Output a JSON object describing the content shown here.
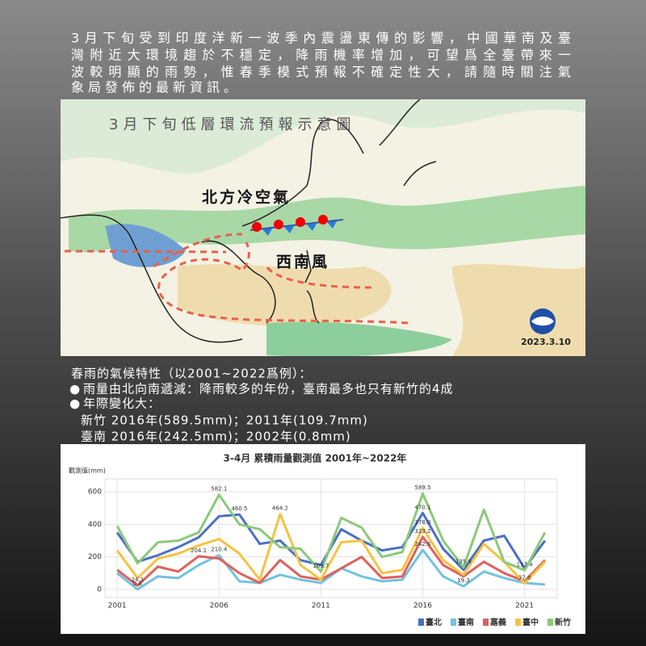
{
  "intro_lines": [
    "3月下旬受到印度洋新一波季內震盪東傳的影響，中國華南及臺",
    "灣附近大環境趨於不穩定，降雨機率增加，可望爲全臺帶來一",
    "波較明顯的雨勢，惟春季模式預報不確定性大，請隨時關注氣",
    "象局發佈的最新資訊。"
  ],
  "map": {
    "title": "3月下旬低層環流預報示意圖",
    "cold_air": "北方冷空氣",
    "southwest_wind": "西南風",
    "date": "2023.3.10"
  },
  "climate": {
    "heading": "春雨的氣候特性（以2001~2022爲例）：",
    "bullets": [
      "雨量由北向南遞減：降雨較多的年份，臺南最多也只有新竹的4成",
      "年際變化大："
    ],
    "records": [
      "新竹 2016年(589.5mm)；2011年(109.7mm)",
      "臺南 2016年(242.5mm)；2002年(0.8mm)"
    ]
  },
  "chart_data": {
    "type": "line",
    "title": "3-4月 累積雨量觀測值 2001年~2022年",
    "y_label": "觀測值(mm)",
    "x": [
      2001,
      2002,
      2003,
      2004,
      2005,
      2006,
      2007,
      2008,
      2009,
      2010,
      2011,
      2012,
      2013,
      2014,
      2015,
      2016,
      2017,
      2018,
      2019,
      2020,
      2021,
      2022
    ],
    "xlim": [
      2000.4,
      2022.6
    ],
    "xticks": [
      2001,
      2006,
      2011,
      2016,
      2021
    ],
    "ylim": [
      -50,
      680
    ],
    "yticks": [
      0,
      200,
      400,
      600
    ],
    "grid": true,
    "legend": "bottom-right",
    "series": [
      {
        "name": "臺北",
        "color": "#4a6fc4",
        "values": [
          350,
          170,
          210,
          260,
          320,
          450,
          460.5,
          280,
          300,
          180,
          150,
          370,
          300,
          240,
          260,
          470.1,
          250,
          120,
          300,
          330,
          130,
          300
        ],
        "value_labels": [
          null,
          null,
          null,
          null,
          null,
          null,
          "460.5",
          null,
          null,
          null,
          null,
          null,
          null,
          null,
          null,
          "470.1",
          null,
          null,
          null,
          null,
          null,
          null
        ]
      },
      {
        "name": "臺南",
        "color": "#72c2de",
        "values": [
          100,
          0.8,
          80,
          70,
          150,
          210.4,
          50,
          40,
          90,
          60,
          40,
          130,
          80,
          50,
          60,
          242.5,
          80,
          19.3,
          110,
          70,
          40,
          30
        ],
        "value_labels": [
          null,
          "0.8",
          null,
          null,
          null,
          "210.4",
          null,
          null,
          null,
          null,
          null,
          null,
          null,
          null,
          null,
          "242.5",
          null,
          "19.3",
          null,
          null,
          null,
          null
        ]
      },
      {
        "name": "嘉義",
        "color": "#e0605a",
        "values": [
          120,
          24.1,
          140,
          110,
          204.1,
          190,
          100,
          40,
          180,
          80,
          60,
          130,
          200,
          70,
          80,
          323.2,
          150,
          80,
          170,
          100,
          50,
          180
        ],
        "value_labels": [
          null,
          "24.1",
          null,
          null,
          "204.1",
          null,
          null,
          null,
          null,
          null,
          null,
          null,
          null,
          null,
          null,
          "323.2",
          null,
          null,
          null,
          null,
          null,
          null
        ]
      },
      {
        "name": "臺中",
        "color": "#f5c242",
        "values": [
          240,
          70,
          190,
          220,
          270,
          310,
          220,
          60,
          464.2,
          150,
          60,
          290,
          300,
          100,
          120,
          378.0,
          180,
          90,
          280,
          170,
          37.8,
          170
        ],
        "value_labels": [
          null,
          null,
          null,
          null,
          null,
          null,
          null,
          null,
          "464.2",
          null,
          null,
          null,
          null,
          null,
          null,
          "378.0",
          null,
          null,
          null,
          null,
          "37.8",
          null
        ]
      },
      {
        "name": "新竹",
        "color": "#8cc97a",
        "values": [
          390,
          160,
          290,
          300,
          350,
          582.1,
          400,
          370,
          260,
          250,
          109.7,
          440,
          380,
          200,
          230,
          589.5,
          300,
          135.9,
          490,
          170,
          117.4,
          350
        ],
        "value_labels": [
          null,
          null,
          null,
          null,
          null,
          "582.1",
          null,
          null,
          null,
          null,
          "109.7",
          null,
          null,
          null,
          null,
          "589.5",
          null,
          "135.9",
          null,
          null,
          "117.4",
          null
        ]
      }
    ]
  }
}
